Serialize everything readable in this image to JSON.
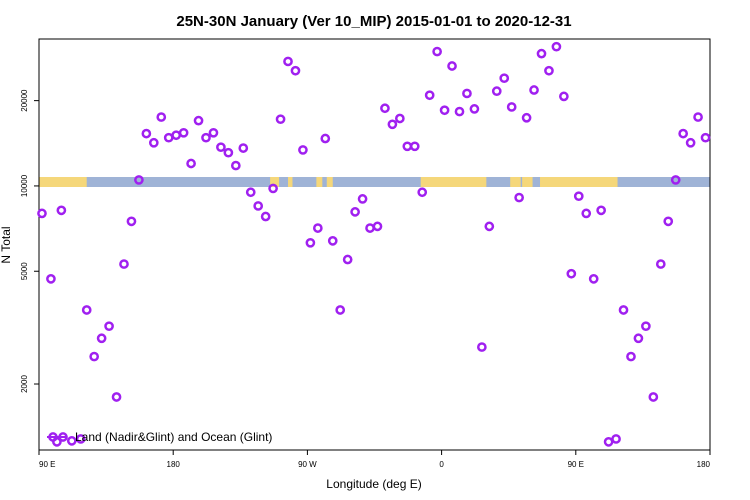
{
  "chart_data": {
    "type": "scatter",
    "title": "25N-30N January (Ver 10_MIP)   2015-01-01 to 2020-12-31",
    "xlabel": "Longitude (deg E)",
    "ylabel": "N Total",
    "x_ticks": [
      {
        "value": 90,
        "label": "90 E"
      },
      {
        "value": 180,
        "label": "180"
      },
      {
        "value": 270,
        "label": "90 W"
      },
      {
        "value": 360,
        "label": "0"
      },
      {
        "value": 450,
        "label": "90 E"
      },
      {
        "value": 540,
        "label": "180"
      }
    ],
    "y_ticks": [
      {
        "value": 2000,
        "label": "2000"
      },
      {
        "value": 5000,
        "label": "5000"
      },
      {
        "value": 10000,
        "label": "10000"
      },
      {
        "value": 20000,
        "label": "20000"
      }
    ],
    "y_scale": "log",
    "xlim": [
      90,
      540
    ],
    "ylim": [
      1170,
      33000
    ],
    "legend": {
      "label": "Land (Nadir&Glint) and Ocean (Glint)",
      "placement": "bottom-left"
    },
    "colors": {
      "marker": "#a020f0",
      "land": "#f5d77a",
      "ocean": "#9fb3d6"
    },
    "land_ocean_band": {
      "land_ranges": [
        [
          90,
          122
        ],
        [
          245,
          251
        ],
        [
          257,
          260
        ],
        [
          276,
          280
        ],
        [
          283,
          287
        ],
        [
          346,
          390
        ],
        [
          406,
          413
        ],
        [
          414,
          421
        ],
        [
          426,
          478
        ]
      ]
    },
    "series": [
      {
        "x": [
          92,
          98,
          102,
          105,
          112,
          118,
          122,
          127,
          132,
          137,
          142,
          147,
          152,
          157,
          162,
          167,
          172,
          177,
          182,
          187,
          192,
          197,
          202,
          207,
          212,
          217,
          222,
          227,
          232,
          237,
          242,
          247,
          252,
          257,
          262,
          267,
          272,
          277,
          282,
          287,
          292,
          297,
          302,
          307,
          312,
          317,
          322,
          327,
          332,
          337,
          342,
          347,
          352,
          357,
          362,
          367,
          372,
          377,
          382,
          387,
          392,
          397,
          402,
          407,
          412,
          417,
          422,
          427,
          432,
          437,
          442,
          447,
          452,
          457,
          462,
          467,
          472,
          477,
          482,
          487,
          492,
          497,
          502,
          507,
          512,
          517,
          522,
          527,
          532,
          537
        ],
        "y": [
          8000,
          4700,
          1250,
          8200,
          1260,
          1280,
          3650,
          2500,
          2900,
          3200,
          1800,
          5300,
          7500,
          10500,
          15300,
          14200,
          17500,
          14800,
          15100,
          15400,
          12000,
          17000,
          14800,
          15400,
          13700,
          13100,
          11800,
          13600,
          9500,
          8500,
          7800,
          9800,
          17200,
          27500,
          25500,
          13400,
          6300,
          7100,
          14700,
          6400,
          3650,
          5500,
          8100,
          9000,
          7100,
          7200,
          18800,
          16500,
          17300,
          13800,
          13800,
          9500,
          20900,
          29800,
          18500,
          26500,
          18300,
          21200,
          18700,
          2700,
          7200,
          21600,
          24000,
          19000,
          9100,
          17400,
          21800,
          29300,
          25500,
          31000,
          20700,
          4900,
          9200,
          8000,
          4700,
          8200,
          1250,
          1280,
          3650,
          2500,
          2900,
          3200,
          1800,
          5300,
          7500,
          10500,
          15300,
          14200,
          17500,
          14800
        ]
      }
    ]
  }
}
